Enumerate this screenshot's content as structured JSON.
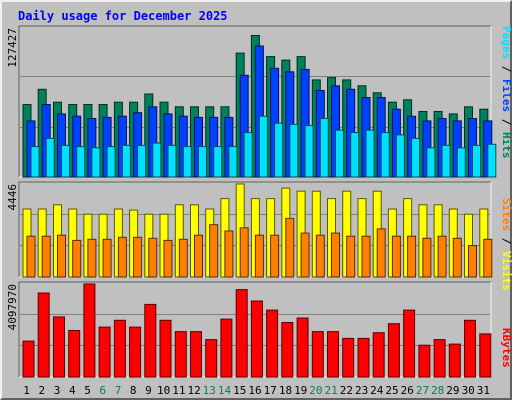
{
  "chart_data": {
    "type": "bar",
    "title": "Daily usage for December 2025",
    "categories": [
      "1",
      "2",
      "3",
      "4",
      "5",
      "6",
      "7",
      "8",
      "9",
      "10",
      "11",
      "12",
      "13",
      "14",
      "15",
      "16",
      "17",
      "18",
      "19",
      "20",
      "21",
      "22",
      "23",
      "24",
      "25",
      "26",
      "27",
      "28",
      "29",
      "30",
      "31"
    ],
    "weekend_days": [
      "6",
      "7",
      "13",
      "14",
      "20",
      "21",
      "27",
      "28"
    ],
    "panels": [
      {
        "name": "hits-files-pages",
        "ymax_label": "127427",
        "ymax": 127427,
        "series": [
          {
            "name": "Hits",
            "color": "#00805c",
            "values": [
              62000,
              75000,
              64000,
              62000,
              62000,
              62000,
              64000,
              64000,
              71000,
              64000,
              60000,
              60000,
              60000,
              60000,
              106000,
              121000,
              103000,
              100000,
              103000,
              83000,
              85000,
              83000,
              78000,
              72000,
              64000,
              66000,
              56000,
              56000,
              54000,
              60000,
              58000
            ]
          },
          {
            "name": "Files",
            "color": "#0040ff",
            "values": [
              48000,
              62000,
              54000,
              52000,
              50000,
              51000,
              52000,
              55000,
              60000,
              54000,
              52000,
              51000,
              51000,
              51000,
              87000,
              112000,
              93000,
              90000,
              92000,
              74000,
              78000,
              75000,
              68000,
              68000,
              58000,
              52000,
              48000,
              50000,
              48000,
              50000,
              48000
            ]
          },
          {
            "name": "Pages",
            "color": "#00e0ff",
            "values": [
              26000,
              33000,
              27000,
              26000,
              25000,
              26000,
              27000,
              27000,
              29000,
              27000,
              26000,
              26000,
              26000,
              26000,
              38000,
              52000,
              46000,
              45000,
              44000,
              50000,
              40000,
              38000,
              40000,
              38000,
              36000,
              33000,
              25000,
              27000,
              25000,
              27000,
              28000
            ]
          }
        ]
      },
      {
        "name": "visits-sites",
        "ymax_label": "4446",
        "ymax": 4446,
        "series": [
          {
            "name": "Visits",
            "color": "#ffff00",
            "values": [
              3250,
              3250,
              3450,
              3250,
              3000,
              3000,
              3250,
              3200,
              3000,
              3000,
              3450,
              3450,
              3250,
              3750,
              4446,
              3750,
              3750,
              4250,
              4100,
              4100,
              3750,
              4100,
              3750,
              4100,
              3250,
              3750,
              3450,
              3450,
              3250,
              3000,
              3250
            ]
          },
          {
            "name": "Sites",
            "color": "#ff8000",
            "values": [
              1950,
              1950,
              2000,
              1750,
              1800,
              1800,
              1900,
              1900,
              1850,
              1750,
              1800,
              2000,
              2500,
              2200,
              2350,
              2000,
              2000,
              2800,
              2100,
              2000,
              2100,
              1950,
              1950,
              2300,
              1950,
              1950,
              1850,
              1950,
              1850,
              1500,
              1800
            ]
          }
        ]
      },
      {
        "name": "kbytes",
        "ymax_label": "4097970",
        "ymax": 4097970,
        "series": [
          {
            "name": "KBytes",
            "color": "#ff0000",
            "values": [
              1580000,
              3700000,
              2650000,
              2050000,
              4097970,
              2200000,
              2500000,
              2200000,
              3200000,
              2500000,
              2000000,
              2000000,
              1650000,
              2550000,
              3850000,
              3350000,
              2950000,
              2400000,
              2600000,
              2000000,
              2000000,
              1700000,
              1700000,
              1950000,
              2350000,
              2950000,
              1400000,
              1650000,
              1450000,
              2500000,
              1900000
            ]
          }
        ]
      }
    ],
    "right_labels": {
      "panel1": [
        "Pages",
        "Files",
        "Hits"
      ],
      "panel2": [
        "Sites",
        "Visits"
      ],
      "panel3": [
        "KBytes"
      ]
    },
    "grid": true
  },
  "colors": {
    "title": "#0000ff",
    "weekday_label": "#000000",
    "weekend_label": "#00805c",
    "plot_bg": "#c0c0c0",
    "grid": "#808080"
  }
}
